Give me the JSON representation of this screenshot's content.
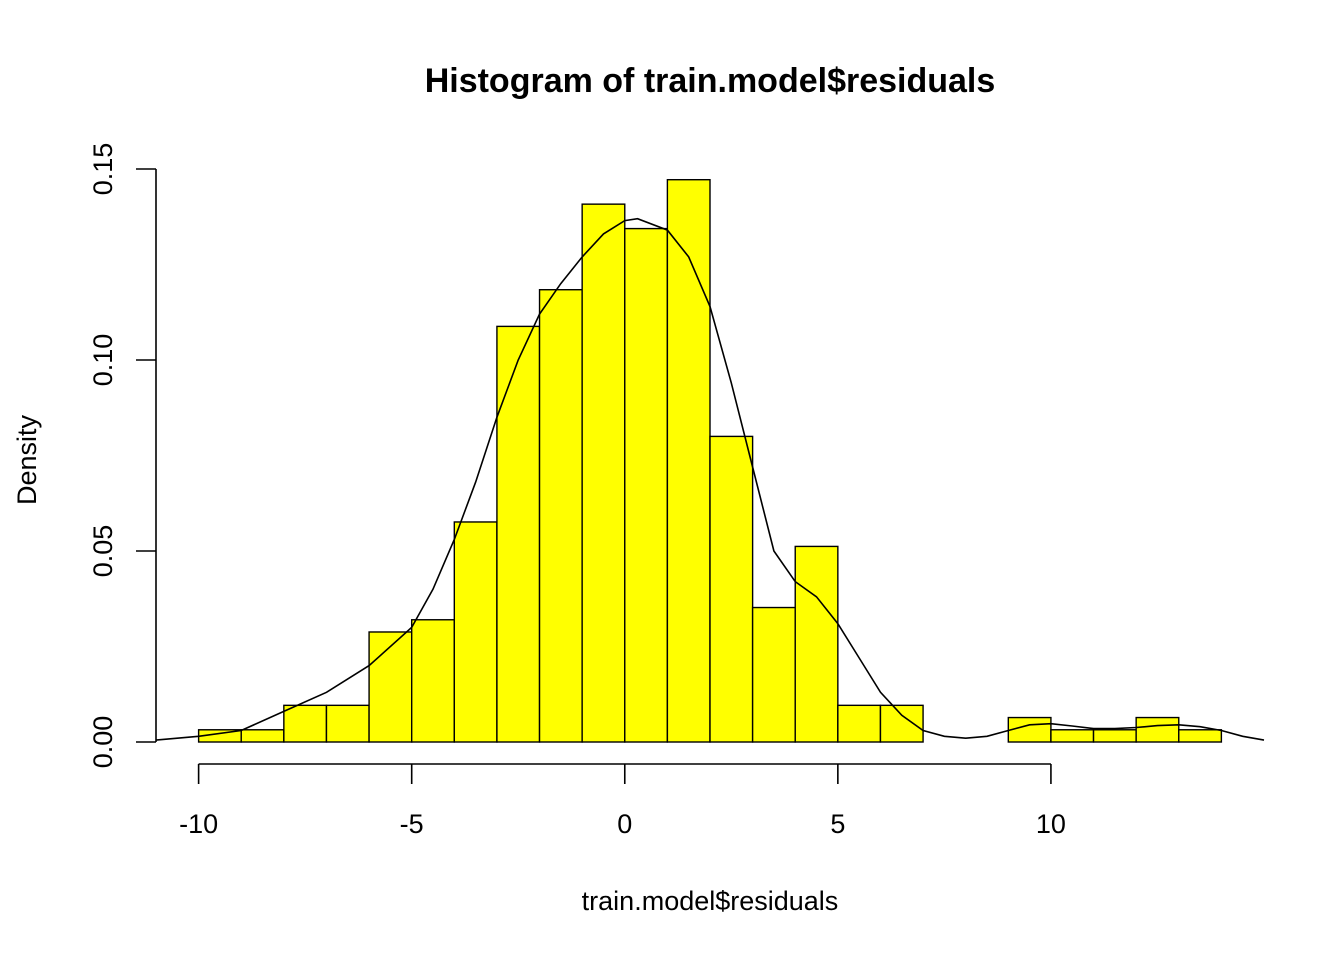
{
  "chart_data": {
    "type": "bar",
    "title": "Histogram of train.model$residuals",
    "xlabel": "train.model$residuals",
    "ylabel": "Density",
    "bar_color": "#ffff00",
    "xlim": [
      -11,
      15
    ],
    "ylim": [
      0,
      0.15
    ],
    "x_ticks": [
      -10,
      -5,
      0,
      5,
      10
    ],
    "x_tick_labels": [
      "-10",
      "-5",
      "0",
      "5",
      "10"
    ],
    "y_ticks": [
      0,
      0.05,
      0.1,
      0.15
    ],
    "y_tick_labels": [
      "0.00",
      "0.05",
      "0.10",
      "0.15"
    ],
    "bins": [
      {
        "x0": -10,
        "x1": -9,
        "density": 0.0032
      },
      {
        "x0": -9,
        "x1": -8,
        "density": 0.0032
      },
      {
        "x0": -8,
        "x1": -7,
        "density": 0.0096
      },
      {
        "x0": -7,
        "x1": -6,
        "density": 0.0096
      },
      {
        "x0": -6,
        "x1": -5,
        "density": 0.0288
      },
      {
        "x0": -5,
        "x1": -4,
        "density": 0.032
      },
      {
        "x0": -4,
        "x1": -3,
        "density": 0.0576
      },
      {
        "x0": -3,
        "x1": -2,
        "density": 0.1088
      },
      {
        "x0": -2,
        "x1": -1,
        "density": 0.1184
      },
      {
        "x0": -1,
        "x1": 0,
        "density": 0.1408
      },
      {
        "x0": 0,
        "x1": 1,
        "density": 0.1344
      },
      {
        "x0": 1,
        "x1": 2,
        "density": 0.1472
      },
      {
        "x0": 2,
        "x1": 3,
        "density": 0.08
      },
      {
        "x0": 3,
        "x1": 4,
        "density": 0.0352
      },
      {
        "x0": 4,
        "x1": 5,
        "density": 0.0512
      },
      {
        "x0": 5,
        "x1": 6,
        "density": 0.0096
      },
      {
        "x0": 6,
        "x1": 7,
        "density": 0.0096
      },
      {
        "x0": 7,
        "x1": 8,
        "density": 0
      },
      {
        "x0": 8,
        "x1": 9,
        "density": 0
      },
      {
        "x0": 9,
        "x1": 10,
        "density": 0.0064
      },
      {
        "x0": 10,
        "x1": 11,
        "density": 0.0032
      },
      {
        "x0": 11,
        "x1": 12,
        "density": 0.0032
      },
      {
        "x0": 12,
        "x1": 13,
        "density": 0.0064
      },
      {
        "x0": 13,
        "x1": 14,
        "density": 0.0032
      }
    ],
    "density_curve": [
      [
        -11,
        0.0005
      ],
      [
        -10,
        0.0015
      ],
      [
        -9,
        0.003
      ],
      [
        -8,
        0.008
      ],
      [
        -7,
        0.013
      ],
      [
        -6,
        0.02
      ],
      [
        -5,
        0.03
      ],
      [
        -4.5,
        0.04
      ],
      [
        -4,
        0.053
      ],
      [
        -3.5,
        0.068
      ],
      [
        -3,
        0.085
      ],
      [
        -2.5,
        0.1
      ],
      [
        -2,
        0.112
      ],
      [
        -1.5,
        0.12
      ],
      [
        -1,
        0.127
      ],
      [
        -0.5,
        0.133
      ],
      [
        0,
        0.1365
      ],
      [
        0.3,
        0.137
      ],
      [
        1,
        0.134
      ],
      [
        1.5,
        0.127
      ],
      [
        2,
        0.114
      ],
      [
        2.5,
        0.094
      ],
      [
        3,
        0.072
      ],
      [
        3.5,
        0.05
      ],
      [
        4,
        0.042
      ],
      [
        4.5,
        0.038
      ],
      [
        5,
        0.031
      ],
      [
        5.5,
        0.022
      ],
      [
        6,
        0.013
      ],
      [
        6.5,
        0.007
      ],
      [
        7,
        0.003
      ],
      [
        7.5,
        0.0015
      ],
      [
        8,
        0.001
      ],
      [
        8.5,
        0.0015
      ],
      [
        9,
        0.003
      ],
      [
        9.5,
        0.0045
      ],
      [
        10,
        0.0048
      ],
      [
        10.5,
        0.0042
      ],
      [
        11,
        0.0035
      ],
      [
        11.5,
        0.0035
      ],
      [
        12,
        0.0038
      ],
      [
        12.5,
        0.0043
      ],
      [
        13,
        0.0045
      ],
      [
        13.5,
        0.004
      ],
      [
        14,
        0.003
      ],
      [
        14.5,
        0.0015
      ],
      [
        15,
        0.0005
      ]
    ]
  }
}
